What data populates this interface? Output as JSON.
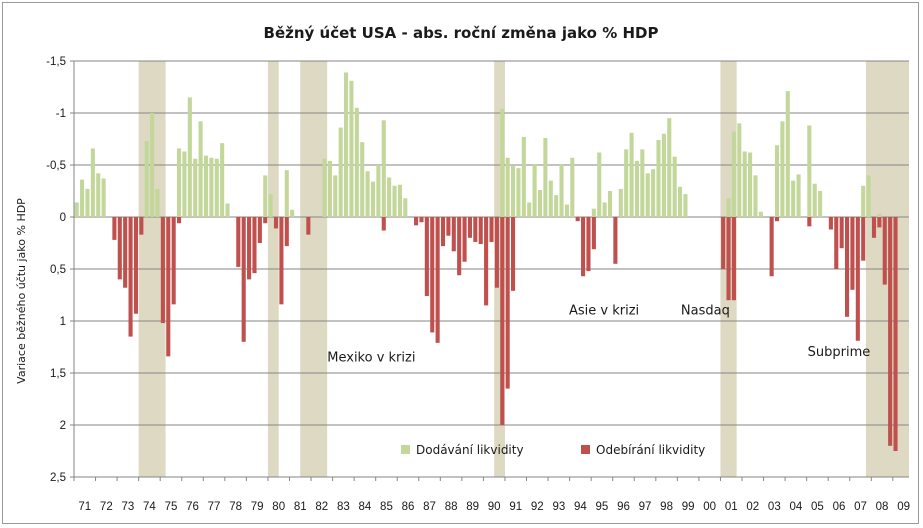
{
  "chart_data": {
    "type": "bar",
    "title": "Běžný účet USA - abs. roční změna jako % HDP",
    "xlabel": "",
    "ylabel": "Variace běžného účtu jako % HDP",
    "ylim": [
      -1.5,
      2.5
    ],
    "y_reversed": true,
    "y_ticks": [
      -1.5,
      -1,
      -0.5,
      0,
      0.5,
      1,
      1.5,
      2,
      2.5
    ],
    "y_tick_labels": [
      "-1,5",
      "-1",
      "-0,5",
      "0",
      "0,5",
      "1",
      "1,5",
      "2",
      "2,5"
    ],
    "x_range": [
      1971,
      2009.75
    ],
    "x_tick_labels": [
      "71",
      "72",
      "73",
      "74",
      "75",
      "76",
      "77",
      "78",
      "79",
      "80",
      "81",
      "82",
      "83",
      "84",
      "85",
      "86",
      "87",
      "88",
      "89",
      "90",
      "91",
      "92",
      "93",
      "94",
      "95",
      "96",
      "97",
      "98",
      "99",
      "00",
      "01",
      "02",
      "03",
      "04",
      "05",
      "06",
      "07",
      "08",
      "09"
    ],
    "grid": true,
    "legend_position": "bottom-center",
    "colors": {
      "providing": "#c4d79b",
      "withdrawing": "#c0504d",
      "recession": "#ddd9c3",
      "grid": "#868686"
    },
    "recessions": [
      [
        1974.0,
        1975.25
      ],
      [
        1980.0,
        1980.5
      ],
      [
        1981.5,
        1982.75
      ],
      [
        1990.5,
        1991.0
      ],
      [
        2001.0,
        2001.75
      ],
      [
        2007.75,
        2009.75
      ]
    ],
    "annotations": [
      {
        "text": "Mexiko v krizi",
        "x": 1984.8,
        "y": 1.35
      },
      {
        "text": "Asie v krizi",
        "x": 1995.6,
        "y": 0.9
      },
      {
        "text": "Nasdaq",
        "x": 2000.3,
        "y": 0.9
      },
      {
        "text": "Subprime",
        "x": 2006.5,
        "y": 1.3
      }
    ],
    "series": [
      {
        "name": "Dodávání likvidity",
        "values": [
          [
            1971.0,
            -0.14
          ],
          [
            1971.25,
            -0.36
          ],
          [
            1971.5,
            -0.27
          ],
          [
            1971.75,
            -0.66
          ],
          [
            1972.0,
            -0.42
          ],
          [
            1972.25,
            -0.37
          ],
          [
            1974.25,
            -0.73
          ],
          [
            1974.5,
            -1.0
          ],
          [
            1974.75,
            -0.27
          ],
          [
            1975.75,
            -0.66
          ],
          [
            1976.0,
            -0.63
          ],
          [
            1976.25,
            -1.15
          ],
          [
            1976.5,
            -0.56
          ],
          [
            1976.75,
            -0.92
          ],
          [
            1977.0,
            -0.59
          ],
          [
            1977.25,
            -0.57
          ],
          [
            1977.5,
            -0.56
          ],
          [
            1977.75,
            -0.71
          ],
          [
            1978.0,
            -0.13
          ],
          [
            1979.75,
            -0.4
          ],
          [
            1980.0,
            -0.22
          ],
          [
            1980.75,
            -0.45
          ],
          [
            1981.0,
            -0.07
          ],
          [
            1982.5,
            -0.56
          ],
          [
            1982.75,
            -0.54
          ],
          [
            1983.0,
            -0.4
          ],
          [
            1983.25,
            -0.86
          ],
          [
            1983.5,
            -1.39
          ],
          [
            1983.75,
            -1.31
          ],
          [
            1984.0,
            -1.05
          ],
          [
            1984.25,
            -0.72
          ],
          [
            1984.5,
            -0.44
          ],
          [
            1984.75,
            -0.34
          ],
          [
            1985.0,
            -0.5
          ],
          [
            1985.25,
            -0.93
          ],
          [
            1985.5,
            -0.38
          ],
          [
            1985.75,
            -0.3
          ],
          [
            1986.0,
            -0.31
          ],
          [
            1986.25,
            -0.18
          ],
          [
            1990.75,
            -1.04
          ],
          [
            1991.0,
            -0.57
          ],
          [
            1991.25,
            -0.49
          ],
          [
            1991.5,
            -0.47
          ],
          [
            1991.75,
            -0.77
          ],
          [
            1992.0,
            -0.14
          ],
          [
            1992.25,
            -0.51
          ],
          [
            1992.5,
            -0.26
          ],
          [
            1992.75,
            -0.76
          ],
          [
            1993.0,
            -0.35
          ],
          [
            1993.25,
            -0.21
          ],
          [
            1993.5,
            -0.51
          ],
          [
            1993.75,
            -0.12
          ],
          [
            1994.0,
            -0.57
          ],
          [
            1995.0,
            -0.08
          ],
          [
            1995.25,
            -0.62
          ],
          [
            1995.5,
            -0.14
          ],
          [
            1995.75,
            -0.25
          ],
          [
            1996.25,
            -0.27
          ],
          [
            1996.5,
            -0.65
          ],
          [
            1996.75,
            -0.81
          ],
          [
            1997.0,
            -0.54
          ],
          [
            1997.25,
            -0.65
          ],
          [
            1997.5,
            -0.42
          ],
          [
            1997.75,
            -0.46
          ],
          [
            1998.0,
            -0.74
          ],
          [
            1998.25,
            -0.8
          ],
          [
            1998.5,
            -0.95
          ],
          [
            1998.75,
            -0.58
          ],
          [
            1999.0,
            -0.29
          ],
          [
            1999.25,
            -0.22
          ],
          [
            2001.25,
            -0.18
          ],
          [
            2001.5,
            -0.82
          ],
          [
            2001.75,
            -0.9
          ],
          [
            2002.0,
            -0.63
          ],
          [
            2002.25,
            -0.62
          ],
          [
            2002.5,
            -0.4
          ],
          [
            2002.75,
            -0.05
          ],
          [
            2003.5,
            -0.69
          ],
          [
            2003.75,
            -0.92
          ],
          [
            2004.0,
            -1.21
          ],
          [
            2004.25,
            -0.35
          ],
          [
            2004.5,
            -0.41
          ],
          [
            2005.0,
            -0.88
          ],
          [
            2005.25,
            -0.32
          ],
          [
            2005.5,
            -0.25
          ],
          [
            2007.5,
            -0.3
          ],
          [
            2007.75,
            -0.4
          ],
          [
            2008.25,
            -0.03
          ]
        ]
      },
      {
        "name": "Odebírání likvidity",
        "values": [
          [
            1972.75,
            0.22
          ],
          [
            1973.0,
            0.6
          ],
          [
            1973.25,
            0.68
          ],
          [
            1973.5,
            1.15
          ],
          [
            1973.75,
            0.93
          ],
          [
            1974.0,
            0.17
          ],
          [
            1975.0,
            1.02
          ],
          [
            1975.25,
            1.34
          ],
          [
            1975.5,
            0.84
          ],
          [
            1975.75,
            0.06
          ],
          [
            1978.5,
            0.48
          ],
          [
            1978.75,
            1.2
          ],
          [
            1979.0,
            0.6
          ],
          [
            1979.25,
            0.54
          ],
          [
            1979.5,
            0.25
          ],
          [
            1979.75,
            0.06
          ],
          [
            1980.25,
            0.11
          ],
          [
            1980.5,
            0.84
          ],
          [
            1980.75,
            0.28
          ],
          [
            1981.75,
            0.17
          ],
          [
            1985.25,
            0.13
          ],
          [
            1986.75,
            0.08
          ],
          [
            1987.0,
            0.05
          ],
          [
            1987.25,
            0.76
          ],
          [
            1987.5,
            1.11
          ],
          [
            1987.75,
            1.21
          ],
          [
            1988.0,
            0.28
          ],
          [
            1988.25,
            0.18
          ],
          [
            1988.5,
            0.33
          ],
          [
            1988.75,
            0.56
          ],
          [
            1989.0,
            0.43
          ],
          [
            1989.25,
            0.2
          ],
          [
            1989.5,
            0.24
          ],
          [
            1989.75,
            0.26
          ],
          [
            1990.0,
            0.85
          ],
          [
            1990.25,
            0.24
          ],
          [
            1990.5,
            0.68
          ],
          [
            1990.75,
            2.0
          ],
          [
            1991.0,
            1.65
          ],
          [
            1991.25,
            0.71
          ],
          [
            1994.25,
            0.04
          ],
          [
            1994.5,
            0.57
          ],
          [
            1994.75,
            0.52
          ],
          [
            1995.0,
            0.31
          ],
          [
            1996.0,
            0.45
          ],
          [
            2001.0,
            0.5
          ],
          [
            2001.25,
            0.8
          ],
          [
            2001.5,
            0.8
          ],
          [
            2003.25,
            0.57
          ],
          [
            2003.5,
            0.04
          ],
          [
            2005.0,
            0.09
          ],
          [
            2006.0,
            0.12
          ],
          [
            2006.25,
            0.5
          ],
          [
            2006.5,
            0.3
          ],
          [
            2006.75,
            0.96
          ],
          [
            2007.0,
            0.7
          ],
          [
            2007.25,
            1.19
          ],
          [
            2007.5,
            0.42
          ],
          [
            2008.0,
            0.2
          ],
          [
            2008.25,
            0.1
          ],
          [
            2008.5,
            0.65
          ],
          [
            2008.75,
            2.2
          ],
          [
            2009.0,
            2.25
          ]
        ]
      }
    ]
  }
}
